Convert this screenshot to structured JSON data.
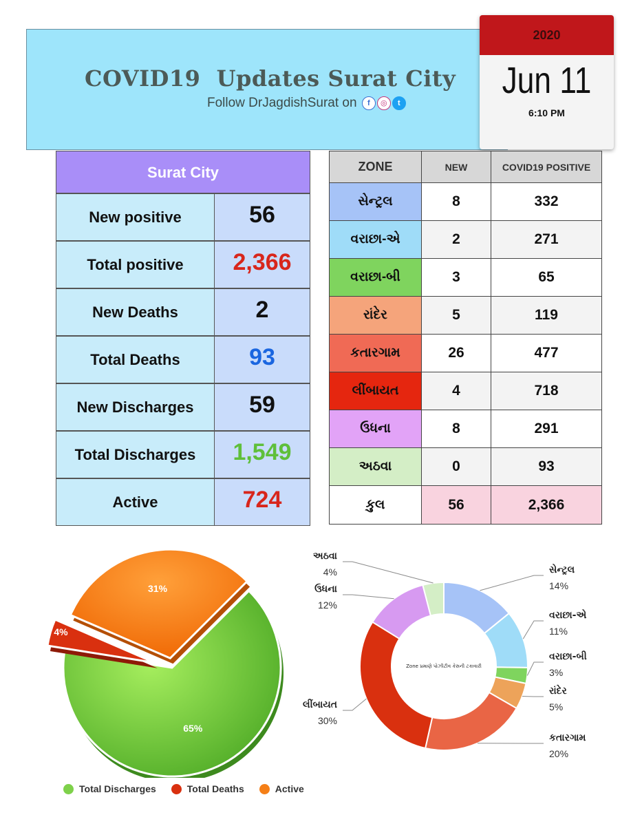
{
  "header": {
    "title": "COVID19  Updates Surat City",
    "follow": "Follow DrJagdishSurat on",
    "social_icons": [
      "facebook-icon",
      "instagram-icon",
      "twitter-icon"
    ]
  },
  "calendar": {
    "year": "2020",
    "date": "Jun 11",
    "time": "6:10 PM"
  },
  "stats": {
    "title": "Surat City",
    "rows": [
      {
        "label": "New positive",
        "value": "56",
        "color": "#111111"
      },
      {
        "label": "Total positive",
        "value": "2,366",
        "color": "#d8261c"
      },
      {
        "label": "New Deaths",
        "value": "2",
        "color": "#111111"
      },
      {
        "label": "Total Deaths",
        "value": "93",
        "color": "#1a66e0"
      },
      {
        "label": "New Discharges",
        "value": "59",
        "color": "#111111"
      },
      {
        "label": "Total Discharges",
        "value": "1,549",
        "color": "#5fbf3a"
      },
      {
        "label": "Active",
        "value": "724",
        "color": "#d8261c"
      }
    ]
  },
  "zones": {
    "headers": [
      "ZONE",
      "NEW",
      "COVID19 POSITIVE"
    ],
    "rows": [
      {
        "name": "સેન્ટ્રલ",
        "new": "8",
        "positive": "332",
        "color": "#a6c3f7"
      },
      {
        "name": "વરાછા-એ",
        "new": "2",
        "positive": "271",
        "color": "#9fdcf8"
      },
      {
        "name": "વરાછા-બી",
        "new": "3",
        "positive": "65",
        "color": "#7fd45e"
      },
      {
        "name": "રાંદેર",
        "new": "5",
        "positive": "119",
        "color": "#f5a47b"
      },
      {
        "name": "કતારગામ",
        "new": "26",
        "positive": "477",
        "color": "#f06a55"
      },
      {
        "name": "લીંબાયત",
        "new": "4",
        "positive": "718",
        "color": "#e5260f"
      },
      {
        "name": "ઉધના",
        "new": "8",
        "positive": "291",
        "color": "#e2a3f7"
      },
      {
        "name": "અઠવા",
        "new": "0",
        "positive": "93",
        "color": "#d4eec6"
      }
    ],
    "total": {
      "name": "કુલ",
      "new": "56",
      "positive": "2,366"
    }
  },
  "chart_data": [
    {
      "type": "pie",
      "categories": [
        "Total Discharges",
        "Total Deaths",
        "Active"
      ],
      "values": [
        65,
        4,
        31
      ],
      "labels": [
        "65%",
        "4%",
        "31%"
      ],
      "colors": [
        "#7ed14a",
        "#d9300f",
        "#f57f17"
      ],
      "legend": "bottom"
    },
    {
      "type": "pie",
      "subtype": "donut",
      "center_text": "Zone પ્રમાણે પોઝીટીવ કેસની ટકાવારી",
      "categories": [
        "સેન્ટ્રલ",
        "વરાછા-એ",
        "વરાછા-બી",
        "રાંદેર",
        "કતારગામ",
        "લીંબાયત",
        "ઉધના",
        "અઠવા"
      ],
      "values": [
        14,
        11,
        3,
        5,
        20,
        30,
        12,
        4
      ],
      "labels": [
        "14%",
        "11%",
        "3%",
        "5%",
        "20%",
        "30%",
        "12%",
        "4%"
      ],
      "colors": [
        "#a6c3f7",
        "#9fdcf8",
        "#7fd45e",
        "#eda35a",
        "#e96545",
        "#d9300f",
        "#d79af1",
        "#d4eec6"
      ]
    }
  ]
}
